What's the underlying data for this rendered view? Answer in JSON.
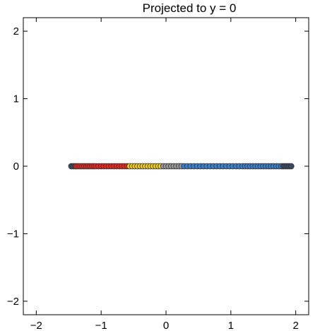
{
  "chart_data": {
    "type": "scatter",
    "title": "Projected to y = 0",
    "xlabel": "",
    "ylabel": "",
    "xlim": [
      -2.2,
      2.2
    ],
    "ylim": [
      -2.2,
      2.2
    ],
    "xticks": [
      -2,
      -1,
      0,
      1,
      2
    ],
    "yticks": [
      -2,
      -1,
      0,
      1,
      2
    ],
    "xtick_labels": [
      "−2",
      "−1",
      "0",
      "1",
      "2"
    ],
    "ytick_labels": [
      "−2",
      "−1",
      "0",
      "1",
      "2"
    ],
    "grid": false,
    "legend": "none",
    "marker_edge_color": "#333333",
    "colors": {
      "red": "#e8261f",
      "yellow": "#f2cc1d",
      "gray": "#999999",
      "blue": "#3a7fc7",
      "dark": "#3b4a63"
    },
    "series": [
      {
        "color_key": "dark",
        "x": [
          -1.46,
          -1.43,
          -1.4
        ]
      },
      {
        "color_key": "red",
        "x": [
          -1.38,
          -1.35,
          -1.32,
          -1.29,
          -1.26,
          -1.23,
          -1.2,
          -1.17,
          -1.14,
          -1.11,
          -1.08,
          -1.04,
          -1.0,
          -0.96,
          -0.92,
          -0.88,
          -0.84,
          -0.8,
          -0.76,
          -0.72,
          -0.68,
          -0.64,
          -0.6
        ]
      },
      {
        "color_key": "yellow",
        "x": [
          -0.56,
          -0.52,
          -0.48,
          -0.44,
          -0.4,
          -0.36,
          -0.32,
          -0.28,
          -0.24,
          -0.2,
          -0.16,
          -0.12,
          -0.08
        ]
      },
      {
        "color_key": "gray",
        "x": [
          -0.04,
          0.0,
          0.04,
          0.08,
          0.12,
          0.16,
          0.2,
          0.24
        ]
      },
      {
        "color_key": "blue",
        "x": [
          0.28,
          0.33,
          0.38,
          0.43,
          0.48,
          0.53,
          0.58,
          0.63,
          0.68,
          0.73,
          0.78,
          0.83,
          0.88,
          0.93,
          0.98,
          1.03,
          1.08,
          1.13,
          1.18,
          1.22,
          1.26,
          1.3,
          1.34,
          1.38,
          1.42,
          1.46,
          1.5,
          1.54,
          1.58,
          1.62,
          1.66,
          1.7,
          1.74,
          1.78
        ]
      },
      {
        "color_key": "dark",
        "x": [
          1.81,
          1.84,
          1.87,
          1.9,
          1.93
        ]
      }
    ]
  }
}
